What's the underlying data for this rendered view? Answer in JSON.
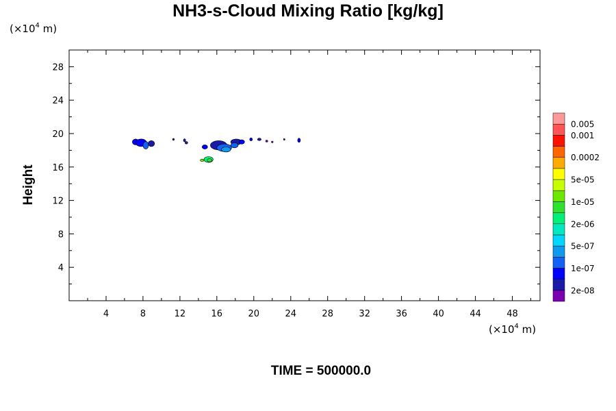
{
  "chart_data": {
    "type": "heatmap",
    "title": "NH3-s-Cloud Mixing Ratio [kg/kg]",
    "xlabel": "",
    "ylabel": "Height",
    "x_unit": {
      "prefix": "(×10",
      "exp": "4",
      "suffix": " m)"
    },
    "y_unit": {
      "prefix": "(×10",
      "exp": "4",
      "suffix": " m)"
    },
    "xlim": [
      0,
      51
    ],
    "ylim": [
      0,
      30
    ],
    "x_ticks": [
      4,
      8,
      12,
      16,
      20,
      24,
      28,
      32,
      36,
      40,
      44,
      48
    ],
    "y_ticks": [
      4,
      8,
      12,
      16,
      20,
      24,
      28
    ],
    "x_minor_step": 2,
    "y_minor_step": 2,
    "colorbar": {
      "colors": [
        "#7a00b0",
        "#1a1aa8",
        "#0000ff",
        "#1462f5",
        "#0e9bee",
        "#00d7ff",
        "#00e8c0",
        "#00f07a",
        "#2ee22e",
        "#6ee800",
        "#c8ff00",
        "#ffff00",
        "#ffaa00",
        "#ff6600",
        "#ff1100",
        "#ff5555",
        "#ff9999"
      ],
      "labels": [
        {
          "text": "2e-08",
          "boundary": 1
        },
        {
          "text": "1e-07",
          "boundary": 3
        },
        {
          "text": "5e-07",
          "boundary": 5
        },
        {
          "text": "2e-06",
          "boundary": 7
        },
        {
          "text": "1e-05",
          "boundary": 9
        },
        {
          "text": "5e-05",
          "boundary": 11
        },
        {
          "text": "0.0002",
          "boundary": 13
        },
        {
          "text": "0.001",
          "boundary": 15
        },
        {
          "text": "0.005",
          "boundary": 16
        }
      ]
    },
    "regions": [
      {
        "x": 7.2,
        "y": 19.0,
        "rx": 0.35,
        "ry": 0.35,
        "level": 2
      },
      {
        "x": 7.8,
        "y": 18.9,
        "rx": 0.6,
        "ry": 0.45,
        "level": 2
      },
      {
        "x": 8.3,
        "y": 18.6,
        "rx": 0.3,
        "ry": 0.45,
        "level": 3
      },
      {
        "x": 8.9,
        "y": 18.8,
        "rx": 0.35,
        "ry": 0.35,
        "level": 1
      },
      {
        "x": 11.3,
        "y": 19.3,
        "rx": 0.1,
        "ry": 0.12,
        "level": 1
      },
      {
        "x": 12.5,
        "y": 19.2,
        "rx": 0.12,
        "ry": 0.18,
        "level": 1
      },
      {
        "x": 12.7,
        "y": 18.9,
        "rx": 0.15,
        "ry": 0.15,
        "level": 1
      },
      {
        "x": 14.7,
        "y": 18.4,
        "rx": 0.3,
        "ry": 0.25,
        "level": 2
      },
      {
        "x": 16.2,
        "y": 18.6,
        "rx": 0.9,
        "ry": 0.55,
        "level": 1
      },
      {
        "x": 16.8,
        "y": 18.3,
        "rx": 0.8,
        "ry": 0.45,
        "level": 3
      },
      {
        "x": 17.0,
        "y": 18.1,
        "rx": 0.5,
        "ry": 0.3,
        "level": 4
      },
      {
        "x": 18.1,
        "y": 19.0,
        "rx": 0.6,
        "ry": 0.35,
        "level": 1
      },
      {
        "x": 17.9,
        "y": 18.6,
        "rx": 0.4,
        "ry": 0.3,
        "level": 3
      },
      {
        "x": 18.7,
        "y": 19.0,
        "rx": 0.3,
        "ry": 0.25,
        "level": 2
      },
      {
        "x": 19.7,
        "y": 19.3,
        "rx": 0.15,
        "ry": 0.18,
        "level": 2
      },
      {
        "x": 20.6,
        "y": 19.3,
        "rx": 0.2,
        "ry": 0.15,
        "level": 1
      },
      {
        "x": 21.4,
        "y": 19.1,
        "rx": 0.12,
        "ry": 0.12,
        "level": 0
      },
      {
        "x": 22.0,
        "y": 19.0,
        "rx": 0.1,
        "ry": 0.1,
        "level": 0
      },
      {
        "x": 23.3,
        "y": 19.3,
        "rx": 0.08,
        "ry": 0.1,
        "level": 0
      },
      {
        "x": 24.9,
        "y": 19.2,
        "rx": 0.15,
        "ry": 0.25,
        "level": 2
      },
      {
        "x": 14.4,
        "y": 16.8,
        "rx": 0.2,
        "ry": 0.15,
        "level": 9
      },
      {
        "x": 15.1,
        "y": 16.9,
        "rx": 0.5,
        "ry": 0.35,
        "level": 7
      },
      {
        "x": 15.2,
        "y": 16.8,
        "rx": 0.25,
        "ry": 0.2,
        "level": 8
      }
    ]
  },
  "footer": {
    "time_label": "TIME = 500000.0"
  }
}
